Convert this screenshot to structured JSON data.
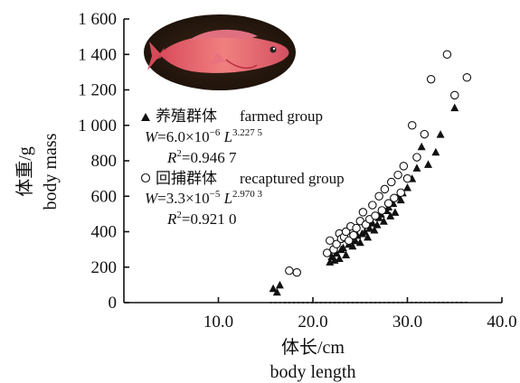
{
  "chart_data": {
    "type": "scatter",
    "xlabel": "体长/cm",
    "xlabel_en": "body length",
    "ylabel": "体重/g",
    "ylabel_en": "body mass",
    "xlim": [
      0,
      40
    ],
    "ylim": [
      0,
      1600
    ],
    "x_ticks": [
      10,
      20,
      30,
      40
    ],
    "x_tick_labels": [
      "10.0",
      "20.0",
      "30.0",
      "40.0"
    ],
    "y_ticks": [
      0,
      200,
      400,
      600,
      800,
      1000,
      1200,
      1400,
      1600
    ],
    "y_tick_labels": [
      "0",
      "200",
      "400",
      "600",
      "800",
      "1 000",
      "1 200",
      "1 400",
      "1 600"
    ],
    "grid": false,
    "legend_position": "left, upper-middle",
    "inset_image": "red grouper fish photo",
    "series": [
      {
        "name": "养殖群体 farmed group",
        "name_cn": "养殖群体",
        "name_en": "farmed group",
        "marker": "filled-triangle",
        "fit_equation": "W=6.0×10⁻⁶ L^3.227 5",
        "fit": {
          "a": 6e-06,
          "b": 3.2275
        },
        "r2": "R²=0.946 7",
        "x": [
          15.8,
          16.2,
          16.5,
          21.8,
          22.0,
          22.3,
          22.5,
          22.8,
          23.0,
          23.2,
          23.5,
          23.8,
          24.0,
          24.2,
          24.5,
          24.7,
          25.0,
          25.2,
          25.5,
          25.8,
          26.0,
          26.3,
          26.5,
          26.8,
          27.0,
          27.2,
          27.5,
          27.8,
          28.0,
          28.2,
          28.5,
          28.7,
          29.0,
          29.3,
          29.5,
          30.0,
          30.5,
          31.0,
          31.5,
          32.2,
          33.0,
          33.5,
          35.0
        ],
        "y": [
          80,
          60,
          100,
          230,
          260,
          240,
          280,
          250,
          300,
          310,
          270,
          330,
          360,
          320,
          350,
          380,
          340,
          390,
          400,
          370,
          420,
          450,
          410,
          440,
          480,
          500,
          460,
          520,
          540,
          490,
          560,
          510,
          600,
          580,
          620,
          650,
          700,
          760,
          880,
          780,
          850,
          950,
          1100
        ]
      },
      {
        "name": "回捕群体 recaptured group",
        "name_cn": "回捕群体",
        "name_en": "recaptured group",
        "marker": "open-circle",
        "fit_equation": "W=3.3×10⁻⁵ L^2.970 3",
        "fit": {
          "a": 3.3e-05,
          "b": 2.9703
        },
        "r2": "R²=0.921 0",
        "x": [
          17.5,
          18.3,
          21.5,
          21.8,
          22.2,
          22.5,
          22.8,
          23.0,
          23.3,
          23.5,
          23.8,
          24.0,
          24.3,
          24.6,
          25.0,
          25.3,
          25.6,
          26.0,
          26.3,
          26.6,
          27.0,
          27.3,
          27.6,
          28.0,
          28.3,
          28.6,
          29.0,
          29.3,
          29.6,
          30.0,
          30.5,
          31.0,
          31.8,
          32.5,
          34.2,
          35.0,
          36.3
        ],
        "y": [
          180,
          170,
          280,
          350,
          300,
          330,
          390,
          360,
          370,
          400,
          350,
          430,
          380,
          420,
          460,
          510,
          440,
          470,
          550,
          490,
          600,
          520,
          640,
          560,
          680,
          590,
          720,
          620,
          770,
          700,
          1000,
          820,
          950,
          1260,
          1400,
          1170,
          1270
        ]
      }
    ]
  }
}
